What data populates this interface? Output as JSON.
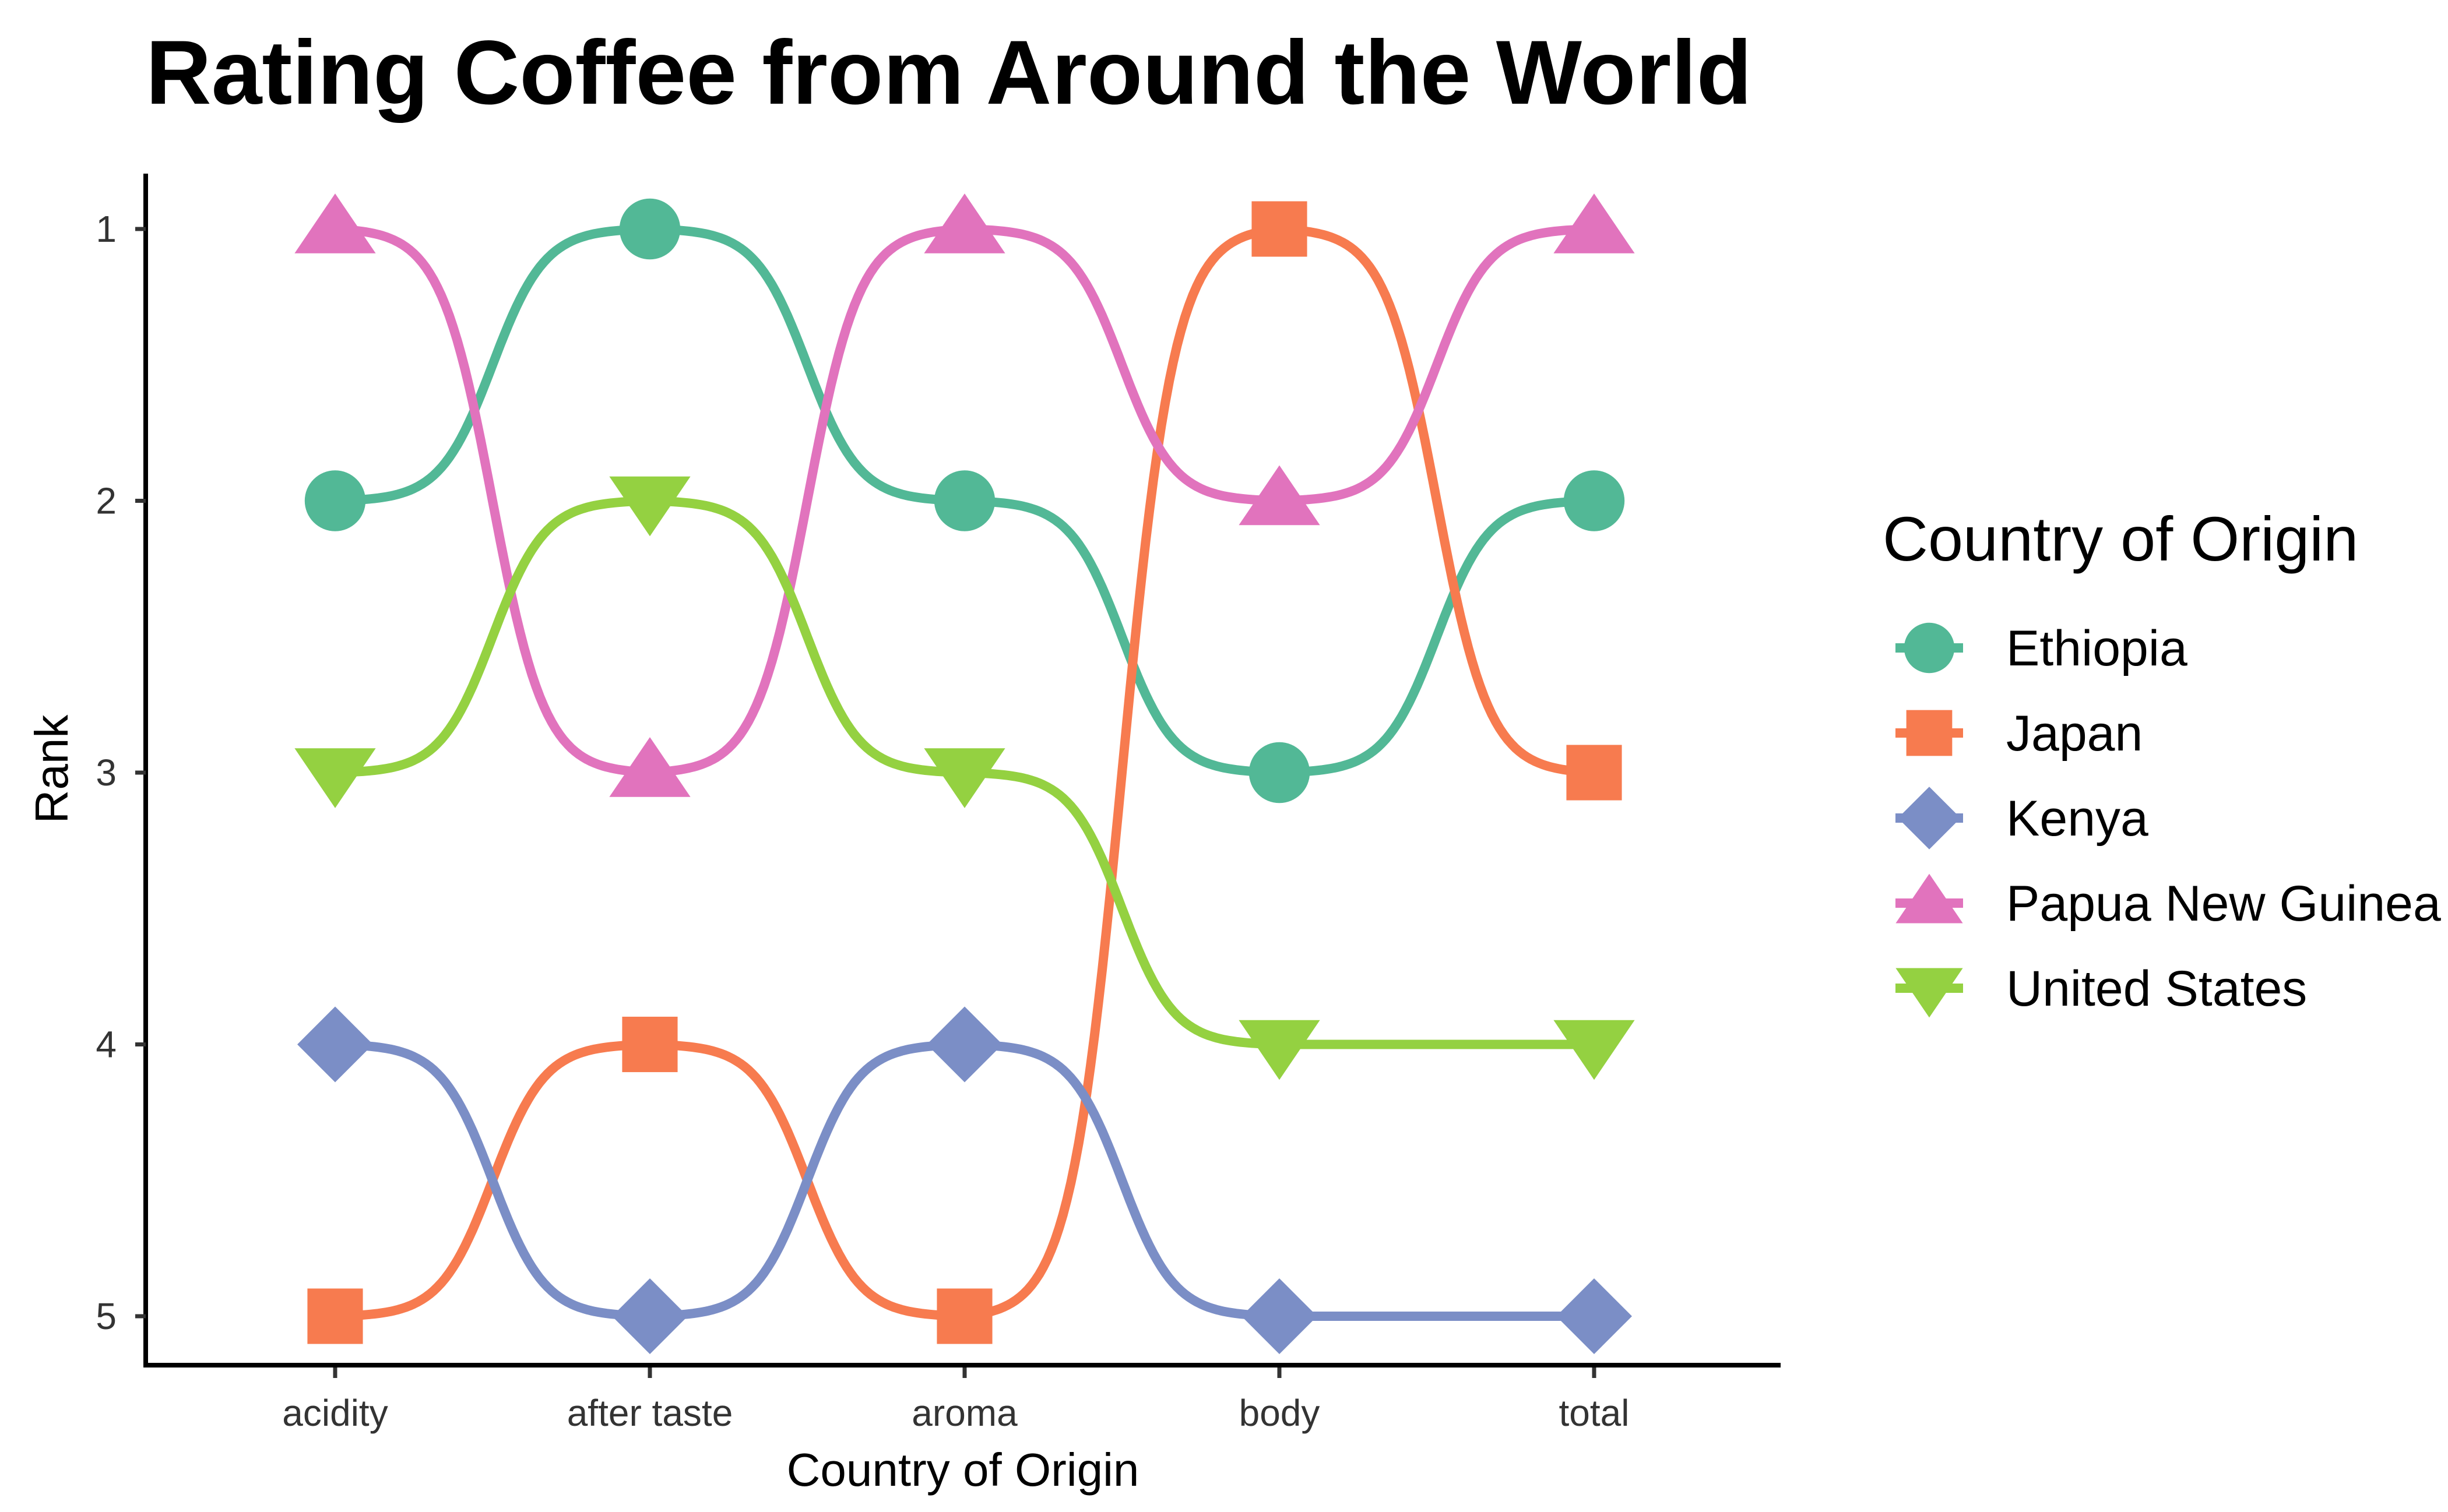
{
  "chart_data": {
    "type": "line",
    "title": "Rating Coffee from Around the World",
    "xlabel": "Country of Origin",
    "ylabel": "Rank",
    "categories": [
      "acidity",
      "after taste",
      "aroma",
      "body",
      "total"
    ],
    "y_ticks": [
      "1",
      "2",
      "3",
      "4",
      "5"
    ],
    "ylim": [
      1,
      5
    ],
    "y_reversed": true,
    "grid": false,
    "legend": {
      "title": "Country of Origin",
      "position": "right"
    },
    "series": [
      {
        "name": "Ethiopia",
        "color": "#52b896",
        "shape": "circle",
        "values": [
          2,
          1,
          2,
          3,
          2
        ]
      },
      {
        "name": "Japan",
        "color": "#f77b4f",
        "shape": "square",
        "values": [
          5,
          4,
          5,
          1,
          3
        ]
      },
      {
        "name": "Kenya",
        "color": "#7b8ec6",
        "shape": "diamond",
        "values": [
          4,
          5,
          4,
          5,
          5
        ]
      },
      {
        "name": "Papua New Guinea",
        "color": "#e173bd",
        "shape": "triangle-up",
        "values": [
          1,
          3,
          1,
          2,
          1
        ]
      },
      {
        "name": "United States",
        "color": "#94d141",
        "shape": "triangle-down",
        "values": [
          3,
          2,
          3,
          4,
          4
        ]
      }
    ]
  }
}
